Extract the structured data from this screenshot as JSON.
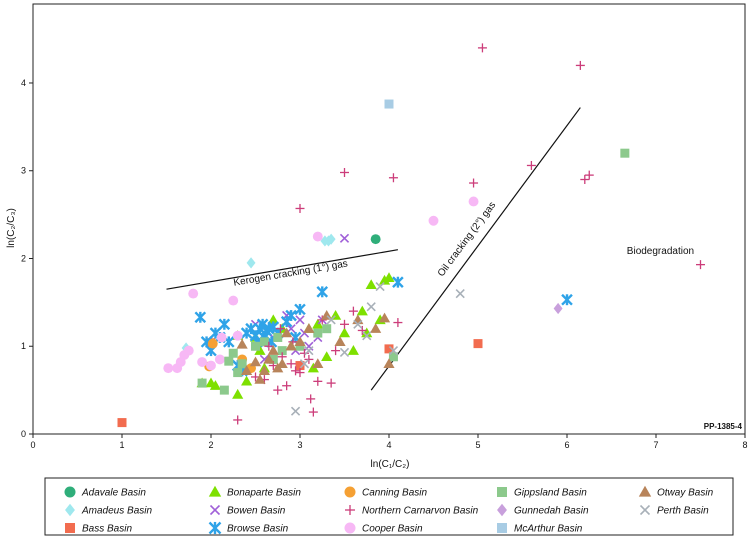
{
  "chart_data": {
    "type": "scatter",
    "xlabel": "ln(C₁/C₂)",
    "ylabel": "ln(C₂/C₃)",
    "xlim": [
      0,
      8
    ],
    "ylim": [
      0,
      4.9
    ],
    "xticks": [
      "0",
      "1",
      "2",
      "3",
      "4",
      "5",
      "6",
      "7",
      "8"
    ],
    "yticks": [
      "0",
      "1",
      "2",
      "3",
      "4"
    ],
    "grid": false,
    "legend_placement": "bottom",
    "figure_code": "PP-1385-4",
    "annotations": [
      {
        "text": "Kerogen cracking (1°) gas",
        "x": 2.9,
        "y": 1.8
      },
      {
        "text": "Oil cracking (2°) gas",
        "x": 4.9,
        "y": 2.2
      },
      {
        "text": "Biodegradation",
        "x": 7.05,
        "y": 2.05
      }
    ],
    "trend_lines": [
      {
        "x": [
          1.5,
          4.1
        ],
        "y": [
          1.65,
          2.1
        ]
      },
      {
        "x": [
          3.8,
          6.15
        ],
        "y": [
          0.5,
          3.72
        ]
      }
    ],
    "series": [
      {
        "name": "Adavale Basin",
        "marker": "circle",
        "color": "#2fae7a",
        "points": [
          [
            3.85,
            2.22
          ]
        ]
      },
      {
        "name": "Amadeus Basin",
        "marker": "diamond",
        "color": "#9fe8ee",
        "points": [
          [
            1.72,
            0.98
          ],
          [
            2.45,
            1.95
          ],
          [
            3.28,
            2.2
          ],
          [
            3.32,
            2.2
          ],
          [
            3.35,
            2.22
          ]
        ]
      },
      {
        "name": "Bass Basin",
        "marker": "square",
        "color": "#f26c4f",
        "points": [
          [
            1.0,
            0.13
          ],
          [
            4.0,
            0.97
          ],
          [
            5.0,
            1.03
          ],
          [
            3.0,
            0.78
          ],
          [
            2.0,
            1.04
          ]
        ]
      },
      {
        "name": "Bonaparte Basin",
        "marker": "triangle",
        "color": "#7ee000",
        "points": [
          [
            1.9,
            0.58
          ],
          [
            2.0,
            0.58
          ],
          [
            2.05,
            0.55
          ],
          [
            2.3,
            0.45
          ],
          [
            2.4,
            0.6
          ],
          [
            2.5,
            1.1
          ],
          [
            2.6,
            0.75
          ],
          [
            2.7,
            1.3
          ],
          [
            2.8,
            1.2
          ],
          [
            2.9,
            1.0
          ],
          [
            3.1,
            1.2
          ],
          [
            3.15,
            0.75
          ],
          [
            3.2,
            1.25
          ],
          [
            3.3,
            0.88
          ],
          [
            3.5,
            1.15
          ],
          [
            3.6,
            0.95
          ],
          [
            3.7,
            1.4
          ],
          [
            3.75,
            1.15
          ],
          [
            3.8,
            1.7
          ],
          [
            3.9,
            1.3
          ],
          [
            3.95,
            1.75
          ],
          [
            4.0,
            1.78
          ],
          [
            2.3,
            1.12
          ],
          [
            2.55,
            0.95
          ],
          [
            3.4,
            1.35
          ]
        ]
      },
      {
        "name": "Bowen Basin",
        "marker": "x",
        "color": "#a060d8",
        "points": [
          [
            3.5,
            2.23
          ],
          [
            2.5,
            1.25
          ],
          [
            2.7,
            1.1
          ],
          [
            2.85,
            1.35
          ],
          [
            2.95,
            0.95
          ],
          [
            3.0,
            1.3
          ],
          [
            3.05,
            1.15
          ],
          [
            3.1,
            1.0
          ],
          [
            3.2,
            1.1
          ],
          [
            2.6,
            0.85
          ],
          [
            3.25,
            1.3
          ],
          [
            2.9,
            1.2
          ]
        ]
      },
      {
        "name": "Browse Basin",
        "marker": "star6",
        "color": "#2fa3e8",
        "points": [
          [
            1.88,
            1.33
          ],
          [
            1.95,
            1.05
          ],
          [
            2.0,
            0.95
          ],
          [
            2.05,
            1.15
          ],
          [
            2.1,
            1.1
          ],
          [
            2.15,
            1.25
          ],
          [
            2.2,
            1.05
          ],
          [
            2.3,
            0.78
          ],
          [
            2.35,
            0.72
          ],
          [
            2.4,
            1.15
          ],
          [
            2.45,
            1.2
          ],
          [
            2.5,
            1.12
          ],
          [
            2.55,
            1.2
          ],
          [
            2.58,
            1.25
          ],
          [
            2.6,
            1.1
          ],
          [
            2.62,
            1.18
          ],
          [
            2.65,
            1.2
          ],
          [
            2.68,
            1.05
          ],
          [
            2.7,
            1.22
          ],
          [
            2.75,
            1.15
          ],
          [
            2.85,
            1.28
          ],
          [
            2.9,
            1.35
          ],
          [
            3.0,
            1.42
          ],
          [
            3.25,
            1.62
          ],
          [
            4.1,
            1.73
          ],
          [
            6.0,
            1.53
          ],
          [
            2.95,
            1.1
          ],
          [
            2.52,
            1.05
          ]
        ]
      },
      {
        "name": "Canning Basin",
        "marker": "circle",
        "color": "#f5a033",
        "points": [
          [
            1.98,
            0.77
          ],
          [
            2.02,
            1.03
          ],
          [
            2.35,
            0.85
          ],
          [
            2.45,
            0.75
          ]
        ]
      },
      {
        "name": "Cooper Basin",
        "marker": "circle",
        "color": "#f7b8f5",
        "points": [
          [
            1.52,
            0.75
          ],
          [
            1.62,
            0.75
          ],
          [
            1.66,
            0.82
          ],
          [
            1.7,
            0.9
          ],
          [
            1.75,
            0.95
          ],
          [
            1.8,
            1.6
          ],
          [
            1.9,
            0.82
          ],
          [
            2.0,
            0.78
          ],
          [
            2.1,
            0.85
          ],
          [
            2.12,
            1.1
          ],
          [
            2.25,
            1.52
          ],
          [
            2.3,
            1.12
          ],
          [
            3.2,
            2.25
          ],
          [
            4.5,
            2.43
          ],
          [
            4.95,
            2.65
          ]
        ]
      },
      {
        "name": "Gippsland Basin",
        "marker": "square",
        "color": "#8cc98c",
        "points": [
          [
            1.9,
            0.58
          ],
          [
            2.15,
            0.5
          ],
          [
            2.2,
            0.83
          ],
          [
            2.25,
            0.92
          ],
          [
            2.3,
            0.7
          ],
          [
            2.35,
            0.8
          ],
          [
            2.5,
            1.0
          ],
          [
            2.6,
            1.05
          ],
          [
            2.7,
            0.85
          ],
          [
            2.75,
            1.1
          ],
          [
            2.8,
            0.95
          ],
          [
            3.0,
            1.0
          ],
          [
            3.2,
            1.15
          ],
          [
            3.3,
            1.2
          ],
          [
            4.05,
            0.88
          ],
          [
            6.65,
            3.2
          ]
        ]
      },
      {
        "name": "Gunnedah Basin",
        "marker": "diamond",
        "color": "#c8a0dc",
        "points": [
          [
            5.9,
            1.43
          ]
        ]
      },
      {
        "name": "McArthur Basin",
        "marker": "square",
        "color": "#a8cce4",
        "points": [
          [
            4.0,
            3.76
          ]
        ]
      },
      {
        "name": "Northern Carnarvon Basin",
        "marker": "plus",
        "color": "#cc3d7a",
        "points": [
          [
            5.05,
            4.4
          ],
          [
            6.15,
            4.2
          ],
          [
            3.5,
            2.98
          ],
          [
            4.05,
            2.92
          ],
          [
            4.95,
            2.86
          ],
          [
            5.6,
            3.06
          ],
          [
            6.2,
            2.9
          ],
          [
            6.25,
            2.95
          ],
          [
            7.5,
            1.93
          ],
          [
            3.0,
            2.57
          ],
          [
            2.3,
            0.16
          ],
          [
            2.5,
            0.65
          ],
          [
            2.6,
            0.62
          ],
          [
            2.7,
            0.78
          ],
          [
            2.75,
            0.5
          ],
          [
            2.8,
            0.88
          ],
          [
            2.85,
            0.55
          ],
          [
            2.9,
            0.8
          ],
          [
            2.95,
            0.72
          ],
          [
            3.0,
            0.7
          ],
          [
            3.05,
            0.92
          ],
          [
            3.1,
            0.85
          ],
          [
            3.12,
            0.4
          ],
          [
            3.15,
            0.25
          ],
          [
            3.2,
            0.6
          ],
          [
            3.25,
            1.3
          ],
          [
            3.35,
            0.58
          ],
          [
            3.4,
            0.95
          ],
          [
            3.5,
            1.25
          ],
          [
            3.6,
            1.4
          ],
          [
            3.7,
            1.18
          ],
          [
            4.1,
            1.27
          ],
          [
            2.65,
            1.0
          ],
          [
            2.78,
            1.2
          ],
          [
            2.92,
            1.05
          ]
        ]
      },
      {
        "name": "Otway Basin",
        "marker": "triangle",
        "color": "#b8845a",
        "points": [
          [
            2.4,
            0.72
          ],
          [
            2.5,
            0.82
          ],
          [
            2.55,
            0.62
          ],
          [
            2.6,
            0.72
          ],
          [
            2.65,
            0.85
          ],
          [
            2.7,
            0.95
          ],
          [
            2.75,
            0.75
          ],
          [
            2.8,
            0.8
          ],
          [
            2.85,
            1.15
          ],
          [
            2.9,
            1.0
          ],
          [
            3.0,
            1.05
          ],
          [
            3.1,
            1.2
          ],
          [
            3.2,
            0.8
          ],
          [
            3.3,
            1.35
          ],
          [
            3.45,
            1.05
          ],
          [
            3.65,
            1.3
          ],
          [
            3.85,
            1.2
          ],
          [
            3.95,
            1.32
          ],
          [
            4.0,
            0.8
          ],
          [
            2.35,
            1.02
          ]
        ]
      },
      {
        "name": "Perth Basin",
        "marker": "x",
        "color": "#a8b0b8",
        "points": [
          [
            2.95,
            0.26
          ],
          [
            3.05,
            0.8
          ],
          [
            3.1,
            0.95
          ],
          [
            3.5,
            0.93
          ],
          [
            3.65,
            1.25
          ],
          [
            3.75,
            1.12
          ],
          [
            3.8,
            1.45
          ],
          [
            3.9,
            1.68
          ],
          [
            4.05,
            0.95
          ],
          [
            4.8,
            1.6
          ],
          [
            3.35,
            1.3
          ]
        ]
      }
    ],
    "legend_rows": [
      [
        "Adavale Basin",
        "Bonaparte Basin",
        "Canning Basin",
        "Gippsland Basin",
        "Otway Basin"
      ],
      [
        "Amadeus Basin",
        "Bowen Basin",
        "Northern Carnarvon Basin",
        "Gunnedah Basin",
        "Perth Basin"
      ],
      [
        "Bass Basin",
        "Browse Basin",
        "Cooper Basin",
        "McArthur Basin"
      ]
    ]
  }
}
